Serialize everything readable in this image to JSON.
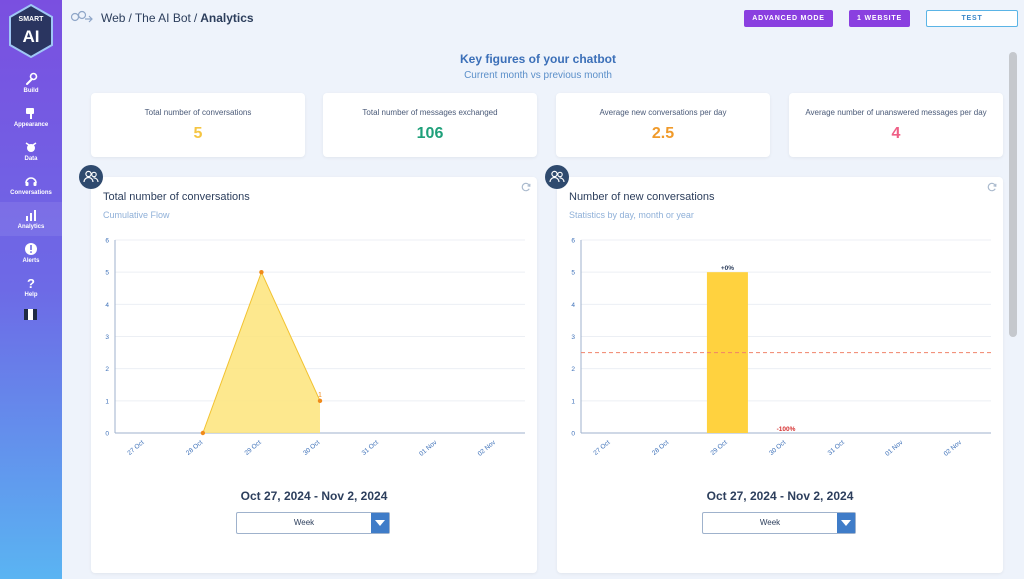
{
  "sidebar": {
    "logo_top": "SMART",
    "logo_main": "AI",
    "items": [
      {
        "id": "build",
        "label": "Build",
        "icon": "wrench-icon"
      },
      {
        "id": "appearance",
        "label": "Appearance",
        "icon": "palette-icon"
      },
      {
        "id": "data",
        "label": "Data",
        "icon": "data-icon"
      },
      {
        "id": "conversations",
        "label": "Conversations",
        "icon": "headset-icon"
      },
      {
        "id": "analytics",
        "label": "Analytics",
        "icon": "bar-chart-icon"
      },
      {
        "id": "alerts",
        "label": "Alerts",
        "icon": "alert-icon"
      },
      {
        "id": "help",
        "label": "Help",
        "icon": "question-icon"
      }
    ],
    "active": "analytics"
  },
  "header": {
    "breadcrumb": [
      "Web",
      "The AI Bot",
      "Analytics"
    ],
    "separator": "/",
    "advanced_mode": "ADVANCED MODE",
    "website": "1 WEBSITE",
    "test": "TEST"
  },
  "key_figures": {
    "title": "Key figures of your chatbot",
    "subtitle": "Current month vs previous month",
    "cards": [
      {
        "label": "Total number of conversations",
        "value": "5",
        "color": "#f5c542"
      },
      {
        "label": "Total number of messages exchanged",
        "value": "106",
        "color": "#1fa07a"
      },
      {
        "label": "Average new conversations per day",
        "value": "2.5",
        "color": "#f09a2a"
      },
      {
        "label": "Average number of unanswered messages per day",
        "value": "4",
        "color": "#ef5f86"
      }
    ]
  },
  "panels": {
    "left": {
      "title": "Total number of conversations",
      "subtitle": "Cumulative Flow",
      "range": "Oct 27, 2024 - Nov 2, 2024",
      "period": "Week"
    },
    "right": {
      "title": "Number of new conversations",
      "subtitle": "Statistics by day, month or year",
      "range": "Oct 27, 2024 - Nov 2, 2024",
      "period": "Week"
    }
  },
  "chart_data": [
    {
      "type": "area",
      "categories": [
        "27 Oct",
        "28 Oct",
        "29 Oct",
        "30 Oct",
        "31 Oct",
        "01 Nov",
        "02 Nov"
      ],
      "series": [
        {
          "values": [
            null,
            0,
            5,
            1,
            null,
            null,
            null
          ]
        }
      ],
      "point_labels": [
        {
          "index": 3,
          "text": "1"
        }
      ],
      "yticks": [
        0,
        1,
        2,
        3,
        4,
        5,
        6
      ],
      "ylim": [
        0,
        6
      ],
      "grid": true,
      "color": "#fde47a",
      "line_color": "#f2c230",
      "marker_color": "#f08a1a"
    },
    {
      "type": "bar",
      "categories": [
        "27 Oct",
        "28 Oct",
        "29 Oct",
        "30 Oct",
        "31 Oct",
        "01 Nov",
        "02 Nov"
      ],
      "values": [
        0,
        0,
        5,
        0,
        0,
        0,
        0
      ],
      "bar_labels": [
        {
          "index": 2,
          "text": "+0%",
          "color": "#2c3e5c"
        },
        {
          "index": 3,
          "text": "-100%",
          "color": "#d63030"
        }
      ],
      "average_line": 2.5,
      "average_color": "#f0826a",
      "yticks": [
        0,
        1,
        2,
        3,
        4,
        5,
        6
      ],
      "ylim": [
        0,
        6
      ],
      "grid": true,
      "color": "#ffd23f"
    }
  ]
}
